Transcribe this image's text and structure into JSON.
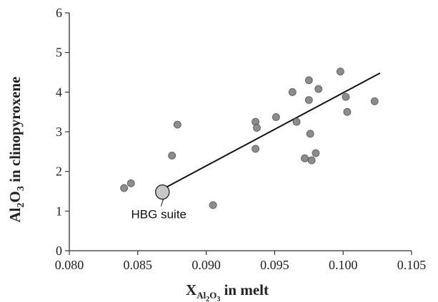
{
  "chart_data": {
    "type": "scatter",
    "xlabel": {
      "main": "X",
      "sub": "Al",
      "sub2": "2",
      "sub3": "O",
      "sub4": "3",
      "suffix": "  in melt"
    },
    "ylabel": {
      "pre": "Al",
      "sub1": "2",
      "mid": "O",
      "sub2": "3",
      "suffix": " in clinopyroxene"
    },
    "xlim": [
      0.08,
      0.105
    ],
    "ylim": [
      0,
      6
    ],
    "xticks": [
      "0.080",
      "0.085",
      "0.090",
      "0.095",
      "0.100",
      "0.105"
    ],
    "yticks": [
      "0",
      "1",
      "2",
      "3",
      "4",
      "5",
      "6"
    ],
    "grid": false,
    "legend": "none",
    "series": [
      {
        "points": [
          {
            "x": 0.084,
            "y": 1.58
          },
          {
            "x": 0.0845,
            "y": 1.7
          },
          {
            "x": 0.0875,
            "y": 2.4
          },
          {
            "x": 0.0879,
            "y": 3.18
          },
          {
            "x": 0.0905,
            "y": 1.15
          },
          {
            "x": 0.0936,
            "y": 3.25
          },
          {
            "x": 0.0937,
            "y": 3.1
          },
          {
            "x": 0.0936,
            "y": 2.57
          },
          {
            "x": 0.0951,
            "y": 3.37
          },
          {
            "x": 0.0963,
            "y": 4.0
          },
          {
            "x": 0.0966,
            "y": 3.25
          },
          {
            "x": 0.0972,
            "y": 2.33
          },
          {
            "x": 0.0975,
            "y": 4.3
          },
          {
            "x": 0.0975,
            "y": 3.8
          },
          {
            "x": 0.0976,
            "y": 2.95
          },
          {
            "x": 0.0977,
            "y": 2.28
          },
          {
            "x": 0.098,
            "y": 2.46
          },
          {
            "x": 0.0982,
            "y": 4.08
          },
          {
            "x": 0.0998,
            "y": 4.52
          },
          {
            "x": 0.1002,
            "y": 3.88
          },
          {
            "x": 0.1003,
            "y": 3.5
          },
          {
            "x": 0.1023,
            "y": 3.77
          }
        ]
      }
    ],
    "trendline": {
      "x": [
        0.0868,
        0.1027
      ],
      "y": [
        1.55,
        4.48
      ]
    },
    "hbg": {
      "label": "HBG suite",
      "x": 0.0868,
      "y": 1.48,
      "rx": 0.0005,
      "ry": 0.18
    },
    "colors": {
      "marker": "#8c8c8c",
      "marker_stroke": "#555555",
      "line": "#111111",
      "ellipse_fill": "#c8c8c8",
      "axis": "#333333"
    }
  }
}
